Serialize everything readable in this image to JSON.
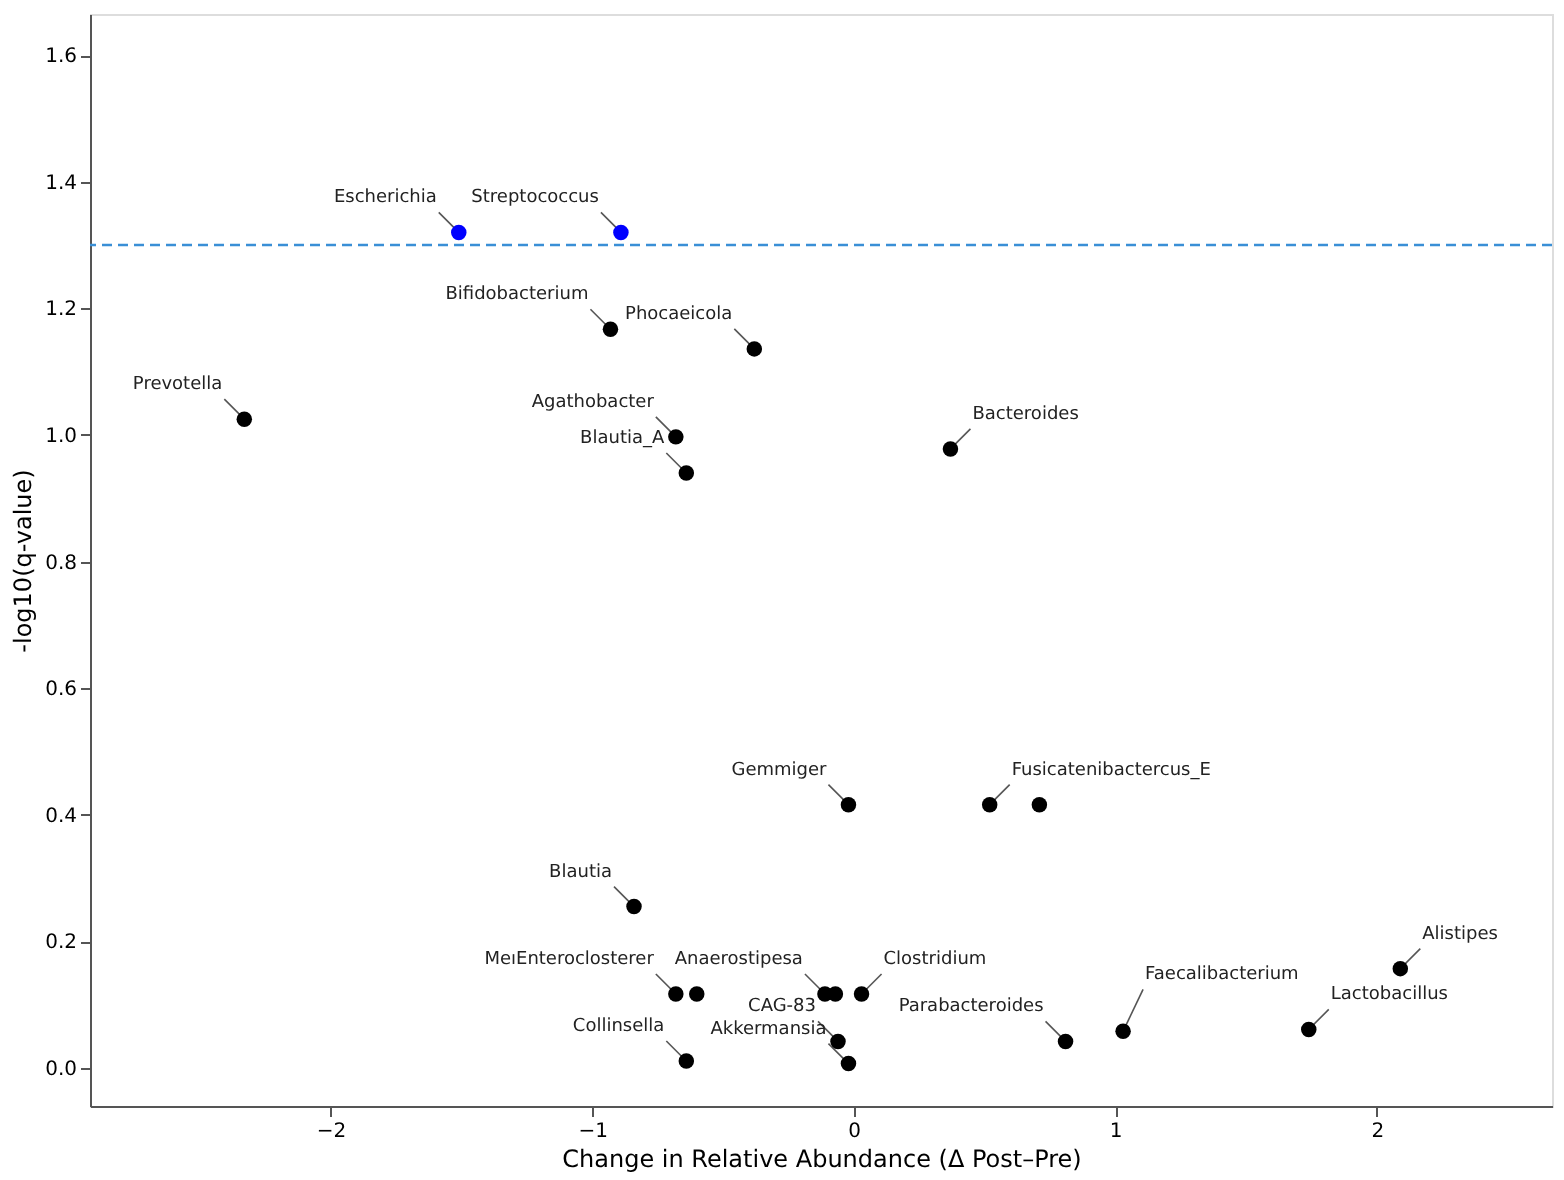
{
  "chart_data": {
    "type": "scatter",
    "xlabel": "Change in Relative Abundance (Δ Post–Pre)",
    "ylabel": "-log10(q-value)",
    "xlim": [
      -2.92,
      2.67
    ],
    "ylim": [
      -0.06,
      1.665
    ],
    "xticks": [
      {
        "value": -2,
        "label": "−2"
      },
      {
        "value": -1,
        "label": "−1"
      },
      0,
      1,
      2
    ],
    "yticks": [
      {
        "value": 0,
        "label": "0.0"
      },
      {
        "value": 0.2,
        "label": "0.2"
      },
      {
        "value": 0.4,
        "label": "0.4"
      },
      {
        "value": 0.6,
        "label": "0.6"
      },
      {
        "value": 0.8,
        "label": "0.8"
      },
      {
        "value": 1.0,
        "label": "1.0"
      },
      {
        "value": 1.2,
        "label": "1.2"
      },
      {
        "value": 1.4,
        "label": "1.4"
      },
      {
        "value": 1.6,
        "label": "1.6"
      }
    ],
    "grid": false,
    "marker": "circle",
    "series": [
      {
        "color": "#0000ff",
        "x": [
          -1.51,
          -0.89
        ],
        "values": [
          1.32,
          1.32
        ]
      },
      {
        "color": "#000000",
        "x": [
          -0.93,
          -0.38,
          -2.33,
          -0.68,
          -0.64,
          0.37,
          -0.02,
          0.52,
          0.71,
          -0.84,
          -0.68,
          -0.6,
          -0.11,
          -0.07,
          0.03,
          -0.06,
          -0.02,
          -0.64,
          0.81,
          1.03,
          1.74,
          2.09
        ],
        "values": [
          1.167,
          1.136,
          1.025,
          0.997,
          0.94,
          0.978,
          0.416,
          0.416,
          0.416,
          0.255,
          0.117,
          0.117,
          0.117,
          0.117,
          0.117,
          0.042,
          0.007,
          0.011,
          0.042,
          0.058,
          0.061,
          0.157
        ]
      }
    ],
    "ref_lines": [
      {
        "axis": "y",
        "value": 1.3,
        "color": "#3a8fd6",
        "line_style": "dashed"
      }
    ],
    "annotations": [
      {
        "text": "Escherichia",
        "x": -1.51,
        "y": 1.32
      },
      {
        "text": "Streptococcus",
        "x": -0.89,
        "y": 1.32
      },
      {
        "text": "Bifidobacterium",
        "x": -0.93,
        "y": 1.167
      },
      {
        "text": "Phocaeicola",
        "x": -0.38,
        "y": 1.136
      },
      {
        "text": "Prevotella",
        "x": -2.33,
        "y": 1.025
      },
      {
        "text": "Agathobacter",
        "x": -0.68,
        "y": 0.997
      },
      {
        "text": "Blautia_A",
        "x": -0.64,
        "y": 0.94
      },
      {
        "text": "Bacteroides",
        "x": 0.37,
        "y": 0.978
      },
      {
        "text": "Gemmiger",
        "x": -0.02,
        "y": 0.416
      },
      {
        "text": "Fusicatenibactercus_E",
        "x": 0.52,
        "y": 0.416
      },
      {
        "text": "Blautia",
        "x": -0.84,
        "y": 0.255
      },
      {
        "text": "MeıEnteroclosterer",
        "x": -0.68,
        "y": 0.117
      },
      {
        "text": "Anaerostipesa",
        "x": -0.11,
        "y": 0.117
      },
      {
        "text": "Clostridium",
        "x": 0.03,
        "y": 0.117
      },
      {
        "text": "CAG-83",
        "x": -0.06,
        "y": 0.042
      },
      {
        "text": "Akkermansia",
        "x": -0.02,
        "y": 0.007
      },
      {
        "text": "Collinsella",
        "x": -0.64,
        "y": 0.011
      },
      {
        "text": "Parabacteroides",
        "x": 0.81,
        "y": 0.042
      },
      {
        "text": "Faecalibacterium",
        "x": 1.03,
        "y": 0.058
      },
      {
        "text": "Lactobacillus",
        "x": 1.74,
        "y": 0.061
      },
      {
        "text": "Alistipes",
        "x": 2.09,
        "y": 0.157
      }
    ]
  }
}
